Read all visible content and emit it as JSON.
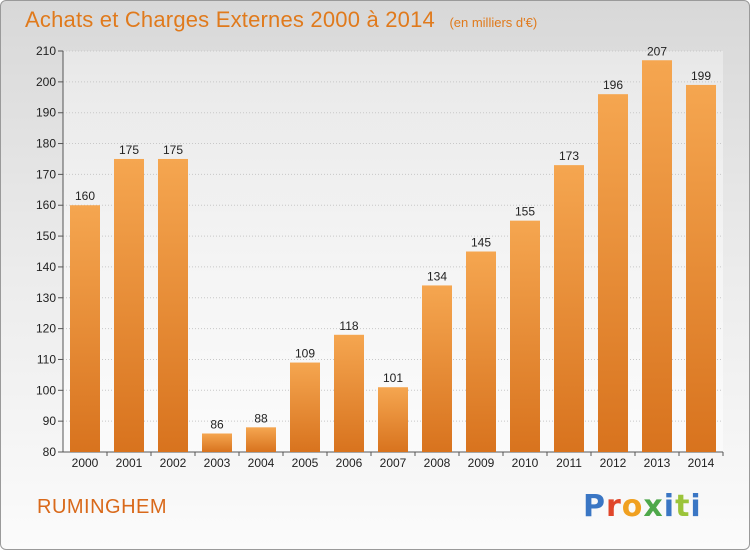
{
  "header": {
    "title": "Achats et Charges Externes 2000 à 2014",
    "unit": "(en milliers d'€)"
  },
  "footer": {
    "town": "RUMINGHEM",
    "brand": "Proxiti"
  },
  "colors": {
    "title": "#e07a1c",
    "bar_top": "#f5a650",
    "bar_bottom": "#d8731e",
    "grid": "#c8c8c8"
  },
  "chart_data": {
    "type": "bar",
    "title": "Achats et Charges Externes 2000 à 2014",
    "subtitle": "(en milliers d'€)",
    "xlabel": "",
    "ylabel": "",
    "categories": [
      "2000",
      "2001",
      "2002",
      "2003",
      "2004",
      "2005",
      "2006",
      "2007",
      "2008",
      "2009",
      "2010",
      "2011",
      "2012",
      "2013",
      "2014"
    ],
    "values": [
      160,
      175,
      175,
      86,
      88,
      109,
      118,
      101,
      134,
      145,
      155,
      173,
      196,
      207,
      199
    ],
    "ylim": [
      80,
      210
    ],
    "yticks": [
      80,
      90,
      100,
      110,
      120,
      130,
      140,
      150,
      160,
      170,
      180,
      190,
      200,
      210
    ],
    "grid": true,
    "data_labels": true
  }
}
